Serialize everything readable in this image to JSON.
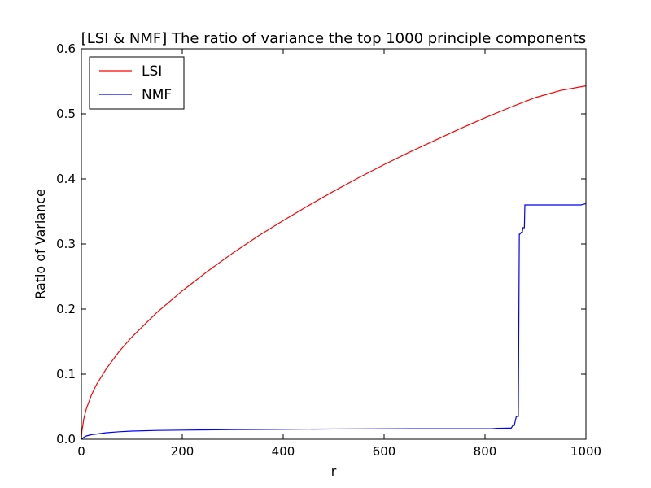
{
  "chart_data": {
    "type": "line",
    "title": "[LSI & NMF] The ratio of variance the top 1000 principle components",
    "xlabel": "r",
    "ylabel": "Ratio of Variance",
    "xlim": [
      0,
      1000
    ],
    "ylim": [
      0.0,
      0.6
    ],
    "xticks": [
      0,
      200,
      400,
      600,
      800,
      1000
    ],
    "xtick_labels": [
      "0",
      "200",
      "400",
      "600",
      "800",
      "1000"
    ],
    "yticks": [
      0.0,
      0.1,
      0.2,
      0.3,
      0.4,
      0.5,
      0.6
    ],
    "ytick_labels": [
      "0.0",
      "0.1",
      "0.2",
      "0.3",
      "0.4",
      "0.5",
      "0.6"
    ],
    "grid": false,
    "legend_position": "top-left",
    "series": [
      {
        "name": "LSI",
        "color": "#ff0000",
        "x": [
          0,
          1,
          5,
          10,
          20,
          30,
          50,
          75,
          100,
          150,
          200,
          250,
          300,
          350,
          400,
          450,
          500,
          550,
          600,
          650,
          700,
          750,
          800,
          850,
          900,
          950,
          1000
        ],
        "y": [
          0.0,
          0.012,
          0.032,
          0.047,
          0.068,
          0.084,
          0.109,
          0.135,
          0.157,
          0.195,
          0.228,
          0.258,
          0.286,
          0.312,
          0.336,
          0.359,
          0.381,
          0.402,
          0.422,
          0.441,
          0.459,
          0.477,
          0.494,
          0.51,
          0.525,
          0.536,
          0.543
        ]
      },
      {
        "name": "NMF",
        "color": "#0000ff",
        "x": [
          0,
          5,
          10,
          20,
          30,
          50,
          75,
          100,
          150,
          200,
          300,
          400,
          500,
          600,
          700,
          800,
          815,
          825,
          845,
          852,
          855,
          858,
          862,
          866,
          868,
          869,
          872,
          874,
          875,
          878,
          879,
          880,
          900,
          950,
          990,
          1000
        ],
        "y": [
          0.0,
          0.003,
          0.005,
          0.007,
          0.008,
          0.01,
          0.0115,
          0.0125,
          0.0135,
          0.014,
          0.0148,
          0.0153,
          0.0157,
          0.016,
          0.0161,
          0.0162,
          0.0163,
          0.0168,
          0.017,
          0.017,
          0.021,
          0.021,
          0.035,
          0.035,
          0.315,
          0.315,
          0.318,
          0.318,
          0.325,
          0.325,
          0.36,
          0.36,
          0.36,
          0.36,
          0.36,
          0.362
        ]
      }
    ]
  }
}
